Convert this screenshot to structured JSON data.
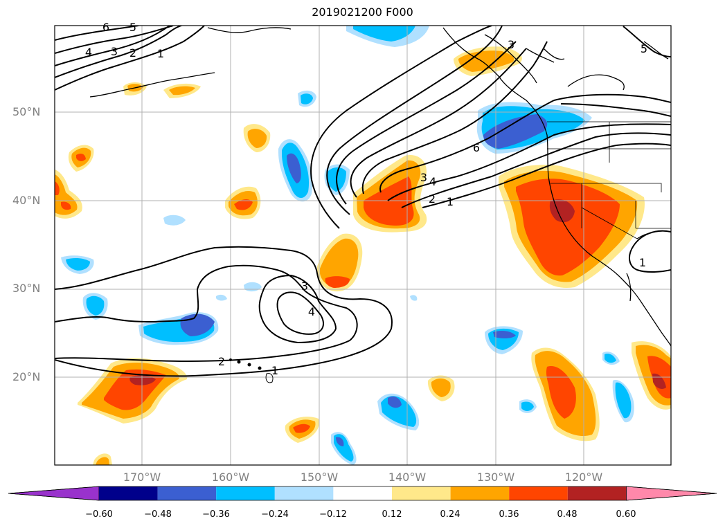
{
  "title": "2019021200 F000",
  "lat_labels": [
    "50°N",
    "40°N",
    "30°N",
    "20°N"
  ],
  "lon_labels": [
    "170°W",
    "160°W",
    "150°W",
    "140°W",
    "130°W",
    "120°W"
  ],
  "colorbar": {
    "colors": [
      "#9932cc",
      "#00008b",
      "#3b5fd1",
      "#00bfff",
      "#b0e0ff",
      "#ffffff",
      "#ffe88a",
      "#ffa500",
      "#ff4500",
      "#b22222",
      "#ff88aa"
    ],
    "tick_labels": [
      "−0.60",
      "−0.48",
      "−0.36",
      "−0.24",
      "−0.12",
      "0.12",
      "0.24",
      "0.36",
      "0.48",
      "0.60"
    ]
  },
  "contour_labels": [
    "6",
    "5",
    "4",
    "3",
    "2",
    "1",
    "3",
    "5",
    "6",
    "4",
    "3",
    "2",
    "1",
    "3",
    "4",
    "2",
    "1",
    "1"
  ],
  "map_features": {
    "fill_colors": {
      "pos_light": "#ffe88a",
      "pos_mid": "#ffa500",
      "pos_high": "#ff4500",
      "pos_max": "#b22222",
      "neg_light": "#b0e0ff",
      "neg_mid": "#00bfff",
      "neg_high": "#3b5fd1"
    },
    "gridline_color": "#b0b0b0",
    "contour_color": "#000000"
  }
}
